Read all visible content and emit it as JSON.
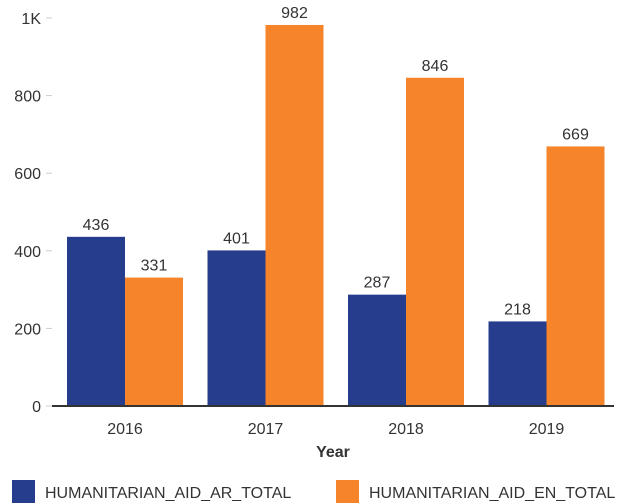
{
  "chart_data": {
    "type": "bar",
    "title": "",
    "xlabel": "Year",
    "ylabel": "",
    "categories": [
      "2016",
      "2017",
      "2018",
      "2019"
    ],
    "series": [
      {
        "name": "HUMANITARIAN_AID_AR_TOTAL",
        "color": "#253d8c",
        "values": [
          436,
          401,
          287,
          218
        ]
      },
      {
        "name": "HUMANITARIAN_AID_EN_TOTAL",
        "color": "#f5842a",
        "values": [
          331,
          982,
          846,
          669
        ]
      }
    ],
    "ylim": [
      0,
      1000
    ],
    "yticks": [
      {
        "value": 0,
        "label": "0"
      },
      {
        "value": 200,
        "label": "200"
      },
      {
        "value": 400,
        "label": "400"
      },
      {
        "value": 600,
        "label": "600"
      },
      {
        "value": 800,
        "label": "800"
      },
      {
        "value": 1000,
        "label": "1K"
      }
    ],
    "grid": false,
    "legend": "bottom"
  }
}
